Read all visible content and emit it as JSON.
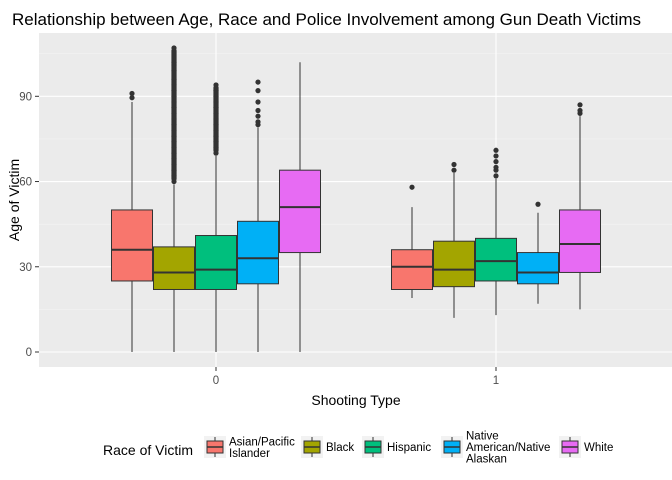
{
  "chart_data": {
    "type": "boxplot",
    "title": "Relationship between Age, Race and Police Involvement among Gun Death Victims",
    "xlabel": "Shooting Type",
    "ylabel": "Age of Victim",
    "categories": [
      "0",
      "1"
    ],
    "ylim": [
      -3,
      110
    ],
    "yticks": [
      0,
      30,
      60,
      90
    ],
    "grid": true,
    "legend": {
      "title": "Race of Victim",
      "position": "bottom",
      "entries": [
        {
          "label_lines": [
            "Asian/Pacific",
            "Islander"
          ],
          "color": "#F8766D"
        },
        {
          "label_lines": [
            "Black"
          ],
          "color": "#A3A500"
        },
        {
          "label_lines": [
            "Hispanic"
          ],
          "color": "#00BF7D"
        },
        {
          "label_lines": [
            "Native",
            "American/Native",
            "Alaskan"
          ],
          "color": "#00B0F6"
        },
        {
          "label_lines": [
            "White"
          ],
          "color": "#E76BF3"
        }
      ]
    },
    "series": [
      {
        "color": "#F8766D",
        "boxes": [
          {
            "category": "0",
            "whisker_low": 0,
            "q1": 25,
            "median": 36,
            "q3": 50,
            "whisker_high": 88,
            "outliers": [
              91,
              89.5
            ]
          },
          {
            "category": "1",
            "whisker_low": 19,
            "q1": 22,
            "median": 30,
            "q3": 36,
            "whisker_high": 51,
            "outliers": [
              58
            ]
          }
        ]
      },
      {
        "color": "#A3A500",
        "boxes": [
          {
            "category": "0",
            "whisker_low": 0,
            "q1": 22,
            "median": 28,
            "q3": 37,
            "whisker_high": 59,
            "outliers": [
              60,
              62,
              64,
              66,
              68,
              70,
              72,
              74,
              76,
              78,
              80,
              82,
              84,
              86,
              88,
              90,
              92,
              94,
              96,
              99,
              101,
              102,
              107
            ]
          },
          {
            "category": "1",
            "whisker_low": 12,
            "q1": 23,
            "median": 29,
            "q3": 39,
            "whisker_high": 63,
            "outliers": [
              64,
              66
            ]
          }
        ]
      },
      {
        "color": "#00BF7D",
        "boxes": [
          {
            "category": "0",
            "whisker_low": 0,
            "q1": 22,
            "median": 29,
            "q3": 41,
            "whisker_high": 69,
            "outliers": [
              70,
              72,
              74,
              76,
              78,
              80,
              82,
              84,
              86,
              88,
              90,
              92,
              94
            ]
          },
          {
            "category": "1",
            "whisker_low": 13,
            "q1": 25,
            "median": 32,
            "q3": 40,
            "whisker_high": 61,
            "outliers": [
              62,
              64,
              65,
              67,
              69,
              71
            ]
          }
        ]
      },
      {
        "color": "#00B0F6",
        "boxes": [
          {
            "category": "0",
            "whisker_low": 0,
            "q1": 24,
            "median": 33,
            "q3": 46,
            "whisker_high": 79,
            "outliers": [
              80,
              81,
              83,
              85,
              88,
              92,
              95
            ]
          },
          {
            "category": "1",
            "whisker_low": 17,
            "q1": 24,
            "median": 28,
            "q3": 35,
            "whisker_high": 49,
            "outliers": [
              52
            ]
          }
        ]
      },
      {
        "color": "#E76BF3",
        "boxes": [
          {
            "category": "0",
            "whisker_low": 0,
            "q1": 35,
            "median": 51,
            "q3": 64,
            "whisker_high": 102,
            "outliers": []
          },
          {
            "category": "1",
            "whisker_low": 15,
            "q1": 28,
            "median": 38,
            "q3": 50,
            "whisker_high": 83,
            "outliers": [
              84,
              85,
              87
            ]
          }
        ]
      }
    ]
  }
}
